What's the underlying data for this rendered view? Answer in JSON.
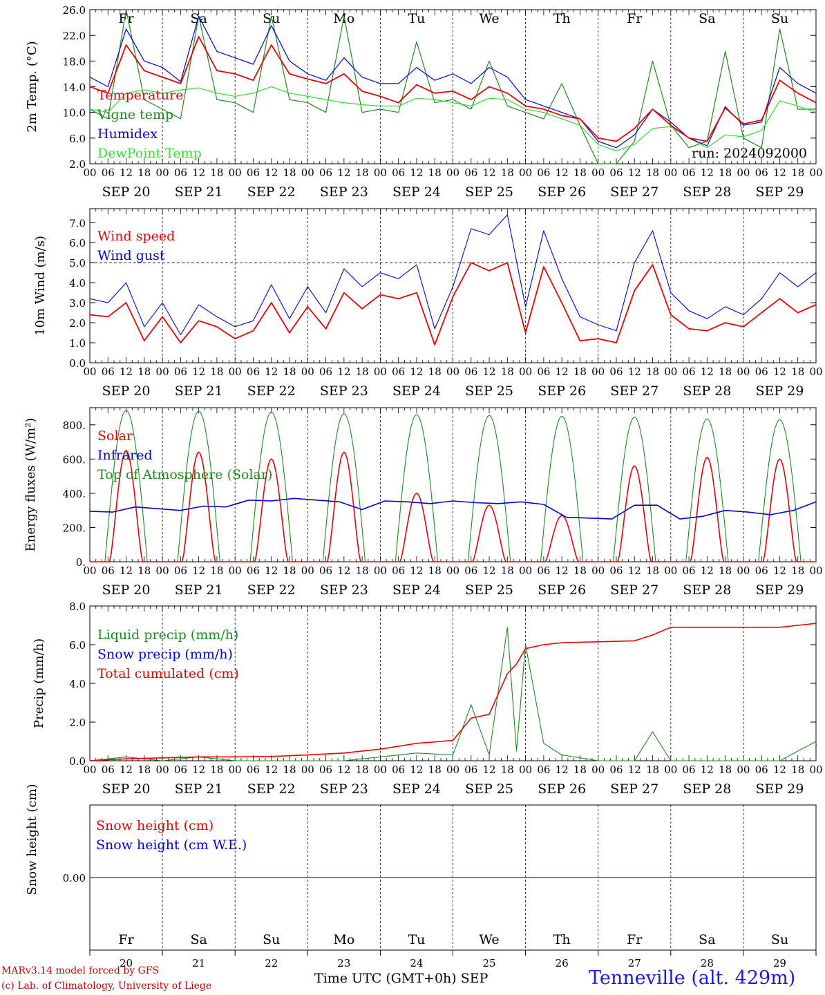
{
  "colors": {
    "red": "#ee0000",
    "green": "#1a8c1a",
    "blue": "#0000dd",
    "lightgreen": "#33dd33",
    "purple": "#7a3aa0",
    "blue_title": "#1a1ae6"
  },
  "days": [
    "Fr",
    "Sa",
    "Su",
    "Mo",
    "Tu",
    "We",
    "Th",
    "Fr",
    "Sa",
    "Su"
  ],
  "weekend_flags": [
    false,
    true,
    true,
    false,
    false,
    false,
    false,
    false,
    true,
    true
  ],
  "dates": [
    "SEP 20",
    "SEP 21",
    "SEP 22",
    "SEP 23",
    "SEP 24",
    "SEP 25",
    "SEP 26",
    "SEP 27",
    "SEP 28",
    "SEP 29"
  ],
  "date_numbers": [
    "20",
    "21",
    "22",
    "23",
    "24",
    "25",
    "26",
    "27",
    "28",
    "29"
  ],
  "hour_ticks": [
    "00",
    "06",
    "12",
    "18"
  ],
  "hour_tick_end": "00",
  "footer": {
    "model": "MARv3.14 model forced by GFS",
    "lab": "(c) Lab. of Climatology, University of Liege",
    "xlabel": "Time UTC (GMT+0h) SEP",
    "station": "Tenneville (alt. 429m)"
  },
  "chart_data": [
    {
      "type": "line",
      "ylabel": "2m Temp. (°C)",
      "ylim": [
        2.0,
        26.0
      ],
      "yticks": [
        "2.0",
        "6.0",
        "10.0",
        "14.0",
        "18.0",
        "22.0",
        "26.0"
      ],
      "annotation": "run: 2024092000",
      "x_hours": [
        0,
        6,
        12,
        18,
        24,
        30,
        36,
        42,
        48,
        54,
        60,
        66,
        72,
        78,
        84,
        90,
        96,
        102,
        108,
        114,
        120,
        126,
        132,
        138,
        144,
        150,
        156,
        162,
        168,
        174,
        180,
        186,
        192,
        198,
        204,
        210,
        216,
        222,
        228,
        234,
        240
      ],
      "series": [
        {
          "name": "Temperature",
          "color": "red",
          "values": [
            14,
            13,
            20.5,
            16.5,
            15.5,
            14.5,
            21.8,
            16.5,
            16,
            15,
            20.5,
            16,
            15.2,
            14.5,
            16,
            13.3,
            12.5,
            11.5,
            14.3,
            13,
            13.3,
            12,
            14,
            13,
            11,
            10.5,
            9.5,
            9,
            6,
            5.5,
            7.5,
            10.5,
            8,
            6,
            5.5,
            10.7,
            8.2,
            8.8,
            15,
            13,
            11.5
          ]
        },
        {
          "name": "Vigne temp",
          "color": "green",
          "values": [
            10.5,
            9,
            26,
            12,
            10.5,
            9,
            25,
            12,
            11.5,
            10,
            25,
            12,
            11.5,
            10,
            25,
            10,
            10.5,
            10,
            21,
            11.5,
            12,
            10.5,
            18,
            11,
            10,
            9,
            14.5,
            8,
            0,
            0,
            5.5,
            18,
            8,
            4.5,
            5.5,
            19.5,
            6,
            4.5,
            23,
            10.5,
            10.5
          ]
        },
        {
          "name": "Humidex",
          "color": "blue",
          "values": [
            15.5,
            14,
            23,
            18,
            17,
            14.8,
            25,
            19.5,
            18.5,
            17.5,
            23.5,
            18,
            16,
            15,
            18.5,
            15.5,
            14.5,
            14.5,
            17,
            15,
            16,
            14.5,
            17,
            15.5,
            12,
            11,
            10,
            9,
            5.5,
            4.5,
            6.5,
            10.5,
            8.5,
            6,
            4.8,
            10.9,
            8,
            8.5,
            17,
            14.5,
            13
          ]
        },
        {
          "name": "DewPoint Temp",
          "color": "lightgreen",
          "values": [
            10.5,
            10,
            13,
            13.5,
            13,
            13.5,
            13.8,
            13,
            12.5,
            13,
            14,
            13,
            12.5,
            12,
            11.5,
            11.2,
            11,
            11,
            12.2,
            12,
            11.5,
            11,
            12.2,
            12,
            10.5,
            10,
            9,
            8,
            5,
            4,
            5,
            7.5,
            7.8,
            6,
            4.5,
            6.5,
            6.2,
            7.2,
            11.8,
            11,
            10
          ]
        }
      ]
    },
    {
      "type": "line",
      "ylabel": "10m Wind (m/s)",
      "ylim": [
        0.0,
        7.7
      ],
      "yticks": [
        "0.0",
        "1.0",
        "2.0",
        "3.0",
        "4.0",
        "5.0",
        "6.0",
        "7.0"
      ],
      "reference_line": 5.0,
      "x_hours": [
        0,
        6,
        12,
        18,
        24,
        30,
        36,
        42,
        48,
        54,
        60,
        66,
        72,
        78,
        84,
        90,
        96,
        102,
        108,
        114,
        120,
        126,
        132,
        138,
        144,
        150,
        156,
        162,
        168,
        174,
        180,
        186,
        192,
        198,
        204,
        210,
        216,
        222,
        228,
        234,
        240
      ],
      "series": [
        {
          "name": "Wind speed",
          "color": "red",
          "values": [
            2.4,
            2.3,
            3.0,
            1.1,
            2.3,
            1.0,
            2.1,
            1.8,
            1.2,
            1.6,
            3.0,
            1.5,
            2.8,
            1.7,
            3.5,
            2.7,
            3.4,
            3.2,
            3.5,
            0.9,
            3.3,
            5.0,
            4.6,
            5.0,
            1.5,
            4.8,
            3.0,
            1.1,
            1.2,
            1.0,
            3.6,
            4.9,
            2.4,
            1.7,
            1.6,
            2.0,
            1.8,
            2.5,
            3.2,
            2.5,
            2.9
          ]
        },
        {
          "name": "Wind gust",
          "color": "blue",
          "values": [
            3.2,
            3.0,
            4.0,
            1.8,
            3.0,
            1.4,
            2.9,
            2.3,
            1.8,
            2.1,
            3.9,
            2.2,
            3.8,
            2.5,
            4.7,
            3.8,
            4.5,
            4.2,
            4.9,
            1.7,
            3.8,
            6.7,
            6.4,
            7.4,
            2.8,
            6.6,
            4.2,
            2.3,
            1.9,
            1.6,
            5.0,
            6.6,
            3.5,
            2.6,
            2.2,
            2.8,
            2.4,
            3.2,
            4.5,
            3.8,
            4.5
          ]
        }
      ]
    },
    {
      "type": "line",
      "ylabel": "Energy fluxes (W/m²)",
      "ylim": [
        0,
        900
      ],
      "yticks": [
        "0.",
        "200.",
        "400.",
        "600.",
        "800."
      ],
      "series": [
        {
          "name": "Solar",
          "color": "red",
          "peaks": [
            650,
            640,
            600,
            640,
            400,
            330,
            270,
            560,
            610,
            600
          ]
        },
        {
          "name": "Infrared",
          "color": "blue",
          "values": [
            295,
            290,
            320,
            310,
            300,
            325,
            320,
            360,
            355,
            370,
            360,
            350,
            305,
            355,
            350,
            340,
            355,
            345,
            340,
            350,
            335,
            260,
            255,
            250,
            330,
            330,
            250,
            265,
            300,
            290,
            275,
            300,
            350
          ]
        },
        {
          "name": "Top of Atmosphere (Solar)",
          "color": "green",
          "peaks": [
            885,
            880,
            875,
            865,
            860,
            855,
            850,
            845,
            835,
            830
          ]
        }
      ]
    },
    {
      "type": "line",
      "ylabel": "Precip (mm/h)",
      "ylim": [
        0.0,
        8.0
      ],
      "yticks": [
        "0.0",
        "2.0",
        "4.0",
        "6.0",
        "8.0"
      ],
      "x_hours": [
        0,
        12,
        24,
        36,
        48,
        60,
        72,
        84,
        96,
        108,
        120,
        126,
        132,
        138,
        141,
        144,
        150,
        156,
        168,
        180,
        186,
        192,
        204,
        216,
        228,
        240
      ],
      "series": [
        {
          "name": "Liquid precip (mm/h)",
          "color": "green",
          "values": [
            0,
            0.2,
            0,
            0.2,
            0,
            0,
            0,
            0,
            0.2,
            0.4,
            0.3,
            2.9,
            0.3,
            6.9,
            0.5,
            6.0,
            0.9,
            0.3,
            0,
            0,
            1.5,
            0,
            0,
            0,
            0,
            1.0
          ]
        },
        {
          "name": "Snow precip (mm/h)",
          "color": "blue",
          "values": []
        },
        {
          "name": "Total cumulated (cm)",
          "color": "red",
          "values": [
            0,
            0.1,
            0.15,
            0.2,
            0.2,
            0.22,
            0.3,
            0.4,
            0.6,
            0.9,
            1.05,
            2.2,
            2.4,
            4.5,
            5.0,
            5.8,
            6.0,
            6.1,
            6.15,
            6.2,
            6.5,
            6.9,
            6.9,
            6.9,
            6.9,
            7.1
          ]
        }
      ]
    },
    {
      "type": "line",
      "ylabel": "Snow height (cm)",
      "yticks": [
        "0.00"
      ],
      "series": [
        {
          "name": "Snow height (cm)",
          "color": "red",
          "values": [
            0
          ]
        },
        {
          "name": "Snow height (cm W.E.)",
          "color": "blue",
          "values": [
            0
          ]
        }
      ]
    }
  ]
}
